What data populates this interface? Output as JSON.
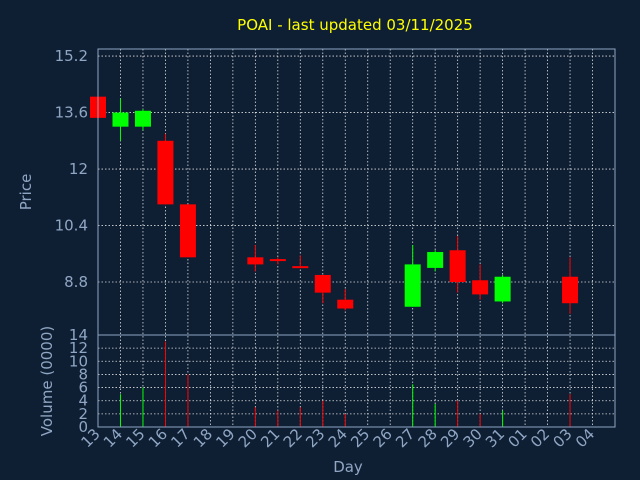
{
  "colors": {
    "background": "#0f1f33",
    "axis_text": "#8fa6c4",
    "title": "#ffff00",
    "grid": "#ffffff",
    "up": "#00ff00",
    "down": "#ff0000"
  },
  "chart_data": {
    "type": "candlestick",
    "title": "POAI - last updated 03/11/2025",
    "xlabel": "Day",
    "price_panel": {
      "ylabel": "Price",
      "ylim": [
        7.3,
        15.4
      ],
      "yticks": [
        "15.2",
        "13.6",
        "12",
        "10.4",
        "8.8"
      ],
      "ytick_values": [
        15.2,
        13.6,
        12,
        10.4,
        8.8
      ]
    },
    "volume_panel": {
      "ylabel": "Volume (0000)",
      "ylim": [
        0,
        14
      ],
      "yticks": [
        "14",
        "12",
        "10",
        "8",
        "6",
        "4",
        "2",
        "0"
      ],
      "ytick_values": [
        14,
        12,
        10,
        8,
        6,
        4,
        2,
        0
      ]
    },
    "x_ticks": [
      "13",
      "14",
      "15",
      "16",
      "17",
      "18",
      "19",
      "20",
      "21",
      "22",
      "23",
      "24",
      "25",
      "26",
      "27",
      "28",
      "29",
      "30",
      "31",
      "01",
      "02",
      "03",
      "04"
    ],
    "candles": [
      {
        "day": "13",
        "open": 14.05,
        "high": 14.1,
        "low": 13.45,
        "close": 13.45,
        "volume": 0
      },
      {
        "day": "14",
        "open": 13.2,
        "high": 14.0,
        "low": 12.8,
        "close": 13.6,
        "volume": 5
      },
      {
        "day": "15",
        "open": 13.2,
        "high": 13.7,
        "low": 13.1,
        "close": 13.65,
        "volume": 6
      },
      {
        "day": "16",
        "open": 12.8,
        "high": 13.0,
        "low": 11.0,
        "close": 11.0,
        "volume": 13
      },
      {
        "day": "17",
        "open": 11.0,
        "high": 11.0,
        "low": 9.5,
        "close": 9.5,
        "volume": 8
      },
      {
        "day": "20",
        "open": 9.5,
        "high": 9.85,
        "low": 9.1,
        "close": 9.3,
        "volume": 3
      },
      {
        "day": "21",
        "open": 9.45,
        "high": 9.5,
        "low": 9.3,
        "close": 9.42,
        "volume": 2.5
      },
      {
        "day": "22",
        "open": 9.25,
        "high": 9.55,
        "low": 9.2,
        "close": 9.2,
        "volume": 3
      },
      {
        "day": "23",
        "open": 9.0,
        "high": 9.0,
        "low": 8.2,
        "close": 8.5,
        "volume": 4
      },
      {
        "day": "24",
        "open": 8.3,
        "high": 8.6,
        "low": 8.0,
        "close": 8.05,
        "volume": 2
      },
      {
        "day": "27",
        "open": 8.1,
        "high": 9.85,
        "low": 8.1,
        "close": 9.3,
        "volume": 6.5
      },
      {
        "day": "28",
        "open": 9.2,
        "high": 9.7,
        "low": 9.1,
        "close": 9.65,
        "volume": 3.5
      },
      {
        "day": "29",
        "open": 9.7,
        "high": 10.1,
        "low": 8.5,
        "close": 8.8,
        "volume": 4
      },
      {
        "day": "30",
        "open": 8.85,
        "high": 9.3,
        "low": 8.3,
        "close": 8.45,
        "volume": 2
      },
      {
        "day": "31",
        "open": 8.25,
        "high": 9.0,
        "low": 8.2,
        "close": 8.95,
        "volume": 2.5
      },
      {
        "day": "03",
        "open": 8.95,
        "high": 9.5,
        "low": 7.9,
        "close": 8.2,
        "volume": 5
      }
    ],
    "grid": true
  }
}
